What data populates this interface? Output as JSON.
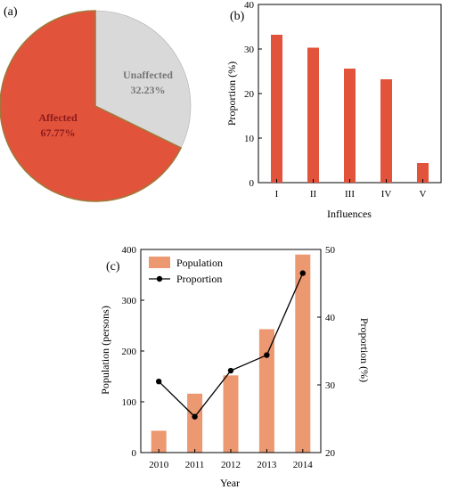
{
  "panels": {
    "a": "(a)",
    "b": "(b)",
    "c": "(c)"
  },
  "colors": {
    "affected": "#e2533b",
    "unaffected": "#d9d9d9",
    "bars_b": "#e2533b",
    "bars_c": "#ec9870",
    "line": "#000000",
    "slice_text_affected": "#8b1a1a",
    "slice_text_unaffected": "#777777"
  },
  "chart_data": [
    {
      "id": "a",
      "type": "pie",
      "labels": [
        "Affected",
        "Unaffected"
      ],
      "values": [
        67.77,
        32.23
      ],
      "value_labels": [
        "67.77%",
        "32.23%"
      ]
    },
    {
      "id": "b",
      "type": "bar",
      "categories": [
        "I",
        "II",
        "III",
        "IV",
        "V"
      ],
      "values": [
        33.2,
        30.3,
        25.6,
        23.2,
        4.4
      ],
      "xlabel": "Influences",
      "ylabel": "Proportion (%)",
      "ylim": [
        0,
        40
      ],
      "yticks": [
        0,
        10,
        20,
        30,
        40
      ],
      "grid": false
    },
    {
      "id": "c",
      "type": "bar+line",
      "categories": [
        "2010",
        "2011",
        "2012",
        "2013",
        "2014"
      ],
      "series": [
        {
          "name": "Population",
          "type": "bar",
          "axis": "left",
          "values": [
            43,
            116,
            152,
            243,
            390
          ]
        },
        {
          "name": "Proportion",
          "type": "line",
          "axis": "right",
          "values": [
            30.5,
            25.3,
            32.1,
            34.4,
            46.5
          ]
        }
      ],
      "xlabel": "Year",
      "ylabel_left": "Population (persons)",
      "ylabel_right": "Proportion (%)",
      "ylim_left": [
        0,
        400
      ],
      "yticks_left": [
        0,
        100,
        200,
        300,
        400
      ],
      "ylim_right": [
        20,
        50
      ],
      "yticks_right": [
        20,
        30,
        40,
        50
      ],
      "legend": "top-left",
      "grid": false
    }
  ]
}
